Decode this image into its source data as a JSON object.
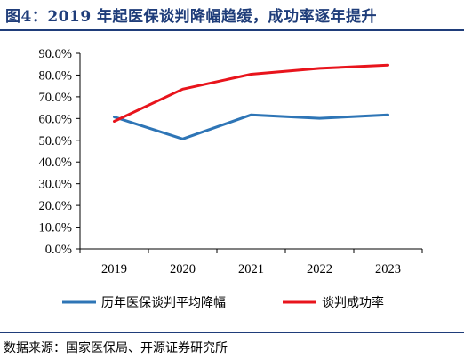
{
  "title": "图4：2019 年起医保谈判降幅趋缓，成功率逐年提升",
  "source": "数据来源：国家医保局、开源证券研究所",
  "chart_data": {
    "type": "line",
    "categories": [
      "2019",
      "2020",
      "2021",
      "2022",
      "2023"
    ],
    "ylim": [
      0,
      90
    ],
    "yticks": [
      "0.0%",
      "10.0%",
      "20.0%",
      "30.0%",
      "40.0%",
      "50.0%",
      "60.0%",
      "70.0%",
      "80.0%",
      "90.0%"
    ],
    "grid": false,
    "legend_position": "bottom",
    "series": [
      {
        "name": "历年医保谈判平均降幅",
        "color": "#2e75b6",
        "values": [
          60.7,
          50.6,
          61.7,
          60.1,
          61.7
        ]
      },
      {
        "name": "谈判成功率",
        "color": "#e8141c",
        "values": [
          58.7,
          73.5,
          80.4,
          83.1,
          84.6
        ]
      }
    ]
  }
}
